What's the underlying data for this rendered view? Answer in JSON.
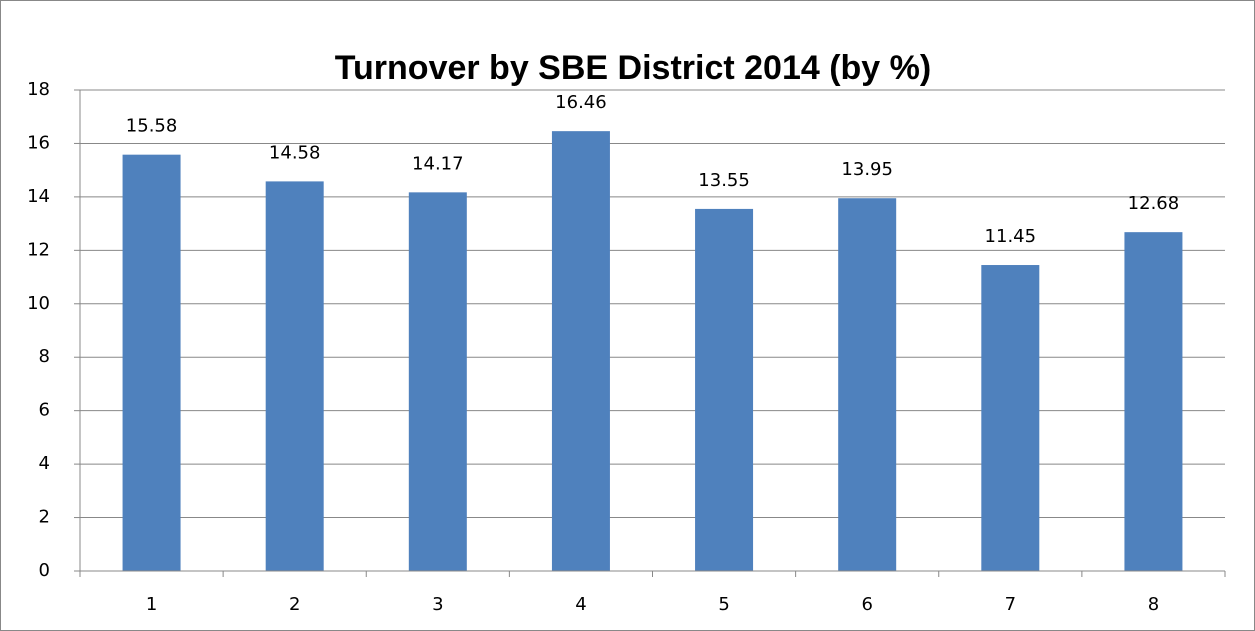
{
  "chart_data": {
    "type": "bar",
    "title": "Turnover by SBE District 2014 (by %)",
    "categories": [
      "1",
      "2",
      "3",
      "4",
      "5",
      "6",
      "7",
      "8"
    ],
    "values": [
      15.58,
      14.58,
      14.17,
      16.46,
      13.55,
      13.95,
      11.45,
      12.68
    ],
    "color": "#4f81bd",
    "ylim": [
      0,
      18
    ],
    "yticks": [
      0,
      2,
      4,
      6,
      8,
      10,
      12,
      14,
      16,
      18
    ],
    "grid": true
  }
}
